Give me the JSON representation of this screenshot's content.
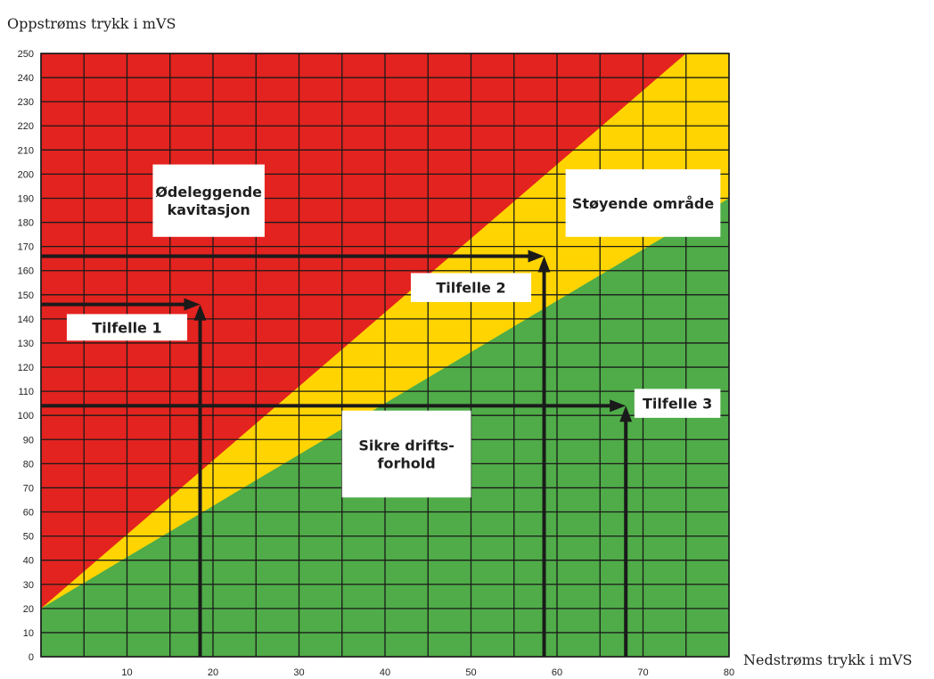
{
  "chart_data": {
    "type": "area",
    "ylabel": "Oppstrøms trykk i mVS",
    "xlabel": "Nedstrøms trykk i mVS",
    "xlim": [
      0,
      80
    ],
    "ylim": [
      0,
      250
    ],
    "x_ticks": [
      10,
      20,
      30,
      40,
      50,
      60,
      70,
      80
    ],
    "y_ticks": [
      0,
      10,
      20,
      30,
      40,
      50,
      60,
      70,
      80,
      90,
      100,
      110,
      120,
      130,
      140,
      150,
      160,
      170,
      180,
      190,
      200,
      210,
      220,
      230,
      240,
      250
    ],
    "grid": true,
    "colors": {
      "red": "#e3231f",
      "yellow": "#ffd400",
      "green": "#4fac48",
      "grid": "#1a1a1a",
      "arrow": "#1a1a1a"
    },
    "regions": [
      {
        "label": "Ødeleggende kavitasjon",
        "color": "red",
        "boundary_points": [
          [
            0,
            20
          ],
          [
            75,
            250
          ]
        ]
      },
      {
        "label": "Støyende område",
        "color": "yellow",
        "boundary_points": [
          [
            0,
            20
          ],
          [
            80,
            190
          ]
        ]
      },
      {
        "label": "Sikre drifts-forhold",
        "color": "green"
      }
    ],
    "cases": [
      {
        "label": "Tilfelle 1",
        "x": 18.5,
        "y": 146
      },
      {
        "label": "Tilfelle 2",
        "x": 58.5,
        "y": 166
      },
      {
        "label": "Tilfelle 3",
        "x": 68,
        "y": 104
      }
    ],
    "boxes": [
      {
        "key": "odeleggende",
        "lines": [
          "Ødeleggende",
          "kavitasjon"
        ],
        "x0": 13,
        "x1": 26,
        "y0": 174,
        "y1": 204
      },
      {
        "key": "stoyende",
        "lines": [
          "Støyende område"
        ],
        "x0": 61,
        "x1": 79,
        "y0": 174,
        "y1": 202
      },
      {
        "key": "tilfelle1",
        "lines": [
          "Tilfelle 1"
        ],
        "x0": 3,
        "x1": 17,
        "y0": 131,
        "y1": 142
      },
      {
        "key": "tilfelle2",
        "lines": [
          "Tilfelle 2"
        ],
        "x0": 43,
        "x1": 57,
        "y0": 147,
        "y1": 159
      },
      {
        "key": "tilfelle3",
        "lines": [
          "Tilfelle 3"
        ],
        "x0": 69,
        "x1": 79,
        "y0": 99,
        "y1": 111
      },
      {
        "key": "sikre",
        "lines": [
          "Sikre drifts-",
          "forhold"
        ],
        "x0": 35,
        "x1": 50,
        "y0": 66,
        "y1": 102
      }
    ]
  }
}
